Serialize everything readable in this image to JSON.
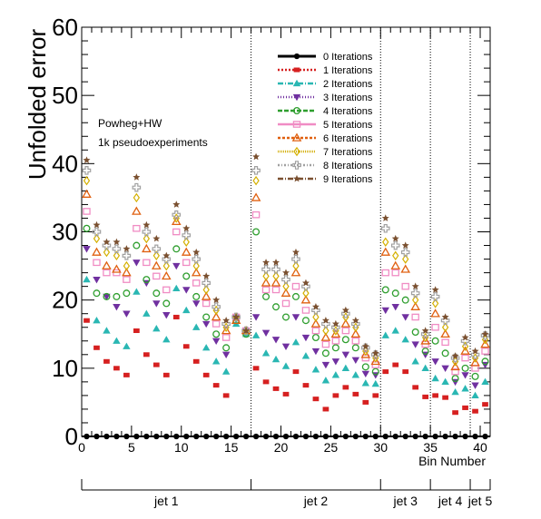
{
  "chart_data": {
    "type": "scatter",
    "ylabel": "Unfolded error",
    "xlabel": "Bin Number",
    "xlim": [
      0,
      41
    ],
    "ylim": [
      0,
      60
    ],
    "x_ticks": [
      0,
      5,
      10,
      15,
      20,
      25,
      30,
      35,
      40
    ],
    "y_ticks": [
      0,
      10,
      20,
      30,
      40,
      50,
      60
    ],
    "annotations": [
      "Powheg+HW",
      "1k pseudoexperiments"
    ],
    "legend_position": "top-center",
    "jet_boundaries": [
      17,
      30,
      35,
      39
    ],
    "jet_labels": [
      {
        "label": "jet 1",
        "from": 0,
        "to": 17
      },
      {
        "label": "jet 2",
        "from": 17,
        "to": 30
      },
      {
        "label": "jet 3",
        "from": 30,
        "to": 35
      },
      {
        "label": "jet 4",
        "from": 35,
        "to": 39
      },
      {
        "label": "jet 5",
        "from": 39,
        "to": 41
      }
    ],
    "x": [
      0.5,
      1.5,
      2.5,
      3.5,
      4.5,
      5.5,
      6.5,
      7.5,
      8.5,
      9.5,
      10.5,
      11.5,
      12.5,
      13.5,
      14.5,
      15.5,
      16.5,
      17.5,
      18.5,
      19.5,
      20.5,
      21.5,
      22.5,
      23.5,
      24.5,
      25.5,
      26.5,
      27.5,
      28.5,
      29.5,
      30.5,
      31.5,
      32.5,
      33.5,
      34.5,
      35.5,
      36.5,
      37.5,
      38.5,
      39.5,
      40.5
    ],
    "series": [
      {
        "name": "0 Iterations",
        "color": "#000000",
        "marker": "circle",
        "values": [
          0,
          0,
          0,
          0,
          0,
          0,
          0,
          0,
          0,
          0,
          0,
          0,
          0,
          0,
          0,
          0,
          0,
          0,
          0,
          0,
          0,
          0,
          0,
          0,
          0,
          0,
          0,
          0,
          0,
          0,
          0,
          0,
          0,
          0,
          0,
          0,
          0,
          0,
          0,
          0,
          0
        ]
      },
      {
        "name": "1 Iterations",
        "color": "#d62020",
        "marker": "square",
        "values": [
          17,
          13,
          11,
          10,
          9,
          15.5,
          12,
          10.5,
          9,
          17.5,
          13.2,
          11,
          9,
          7.5,
          6,
          17.5,
          15,
          10,
          8,
          7,
          6.2,
          9.5,
          7.5,
          5.5,
          4,
          6,
          7.2,
          6.2,
          5,
          6,
          9.5,
          10.5,
          9.5,
          7.2,
          5.8,
          6,
          5.7,
          3.5,
          4.2,
          3.7,
          4.7
        ]
      },
      {
        "name": "2 Iterations",
        "color": "#2ab7b3",
        "marker": "triangle-up",
        "values": [
          23,
          17,
          15.5,
          14,
          13.2,
          21.2,
          18,
          15.8,
          14.2,
          21.7,
          18.5,
          16,
          13,
          11,
          9.5,
          16.5,
          15,
          14.8,
          12.2,
          11.3,
          10.3,
          13.8,
          11.8,
          9.8,
          8.2,
          9,
          10,
          9,
          7.8,
          7.7,
          14.8,
          15.5,
          14.2,
          11,
          10,
          8.5,
          8,
          6.5,
          7,
          6,
          8
        ]
      },
      {
        "name": "3 Iterations",
        "color": "#7030a0",
        "marker": "triangle-down",
        "values": [
          27.5,
          23,
          20.5,
          19,
          18,
          25.5,
          22.5,
          19.5,
          17.8,
          25,
          21.5,
          19.5,
          16.5,
          14,
          12,
          17.5,
          15.5,
          17.5,
          15.2,
          14.2,
          13.2,
          17.5,
          14.5,
          12.5,
          10.5,
          11,
          12,
          11.2,
          9.2,
          9,
          18.5,
          19,
          17.5,
          13.5,
          12,
          11,
          10,
          8,
          9,
          7.5,
          10.5
        ]
      },
      {
        "name": "4 Iterations",
        "color": "#2e9e2e",
        "marker": "circle-open",
        "values": [
          30.5,
          21,
          20.5,
          20.5,
          21,
          28,
          23,
          21,
          19.5,
          27.5,
          23.5,
          20.5,
          17.5,
          15,
          13,
          17,
          15,
          30,
          20.5,
          19,
          17.5,
          20.5,
          17,
          14.5,
          12.2,
          13,
          14.2,
          13,
          10.2,
          9.5,
          21.5,
          21,
          20,
          15.3,
          12.5,
          14,
          12.2,
          8.5,
          10,
          8.8,
          11
        ]
      },
      {
        "name": "5 Iterations",
        "color": "#f08cc4",
        "marker": "square-open",
        "values": [
          33,
          25.5,
          24,
          24,
          23,
          30.5,
          25.5,
          23.5,
          21.5,
          30,
          25.5,
          22.5,
          19.5,
          16.5,
          14.5,
          17.5,
          15.5,
          32.5,
          21.5,
          21.5,
          19.5,
          22,
          18.5,
          15.5,
          13.5,
          14,
          15.5,
          14,
          11.5,
          10.5,
          24,
          24,
          22,
          17.5,
          13.5,
          16,
          13.8,
          9.5,
          11.5,
          10,
          12.5
        ]
      },
      {
        "name": "6 Iterations",
        "color": "#e06010",
        "marker": "triangle-up-open",
        "values": [
          35.5,
          27,
          25,
          24.5,
          24,
          33,
          27.5,
          25,
          23.5,
          31.5,
          27,
          24,
          20.5,
          17.5,
          15.5,
          17,
          15.5,
          35,
          22.5,
          22.5,
          21,
          24,
          20,
          16.5,
          14.5,
          15,
          16.5,
          15,
          12,
          11,
          27,
          25,
          24.5,
          19,
          14,
          18,
          15,
          10.2,
          12.5,
          10.8,
          13.5
        ]
      },
      {
        "name": "7 Iterations",
        "color": "#d4b000",
        "marker": "diamond-open",
        "values": [
          37.5,
          29,
          27,
          26.5,
          25,
          35,
          29,
          26.5,
          25,
          32,
          28.5,
          25,
          21.5,
          18.5,
          16,
          17.5,
          15.5,
          37.5,
          23.5,
          23.5,
          22,
          25,
          21,
          17.5,
          15.5,
          15.5,
          17.5,
          16,
          12.5,
          11.5,
          28.5,
          26.5,
          26,
          20,
          14.5,
          19.5,
          16,
          11,
          13.2,
          11.5,
          14.2
        ]
      },
      {
        "name": "8 Iterations",
        "color": "#a0a0a0",
        "marker": "cross-open",
        "values": [
          39,
          30,
          28,
          27.5,
          26.5,
          36.5,
          30,
          27.5,
          26,
          32.5,
          29.5,
          26,
          22.5,
          19,
          16.5,
          17.5,
          15.5,
          39,
          24.5,
          24.5,
          23,
          26,
          22,
          18.5,
          16.5,
          16,
          18,
          16.5,
          13,
          12,
          30.5,
          28,
          27,
          21,
          15,
          20.5,
          17,
          11.5,
          14,
          12,
          14.8
        ]
      },
      {
        "name": "9 Iterations",
        "color": "#7a5030",
        "marker": "star",
        "values": [
          40.5,
          31,
          28.5,
          28.5,
          27.5,
          38,
          31,
          29,
          26.5,
          34,
          30.5,
          27,
          23.5,
          20,
          17,
          17.5,
          15.5,
          41,
          25.5,
          25.5,
          24,
          27,
          22.5,
          19,
          17,
          16.5,
          18.5,
          17,
          13.2,
          12.2,
          32,
          29,
          28,
          22,
          15.5,
          21.5,
          17.5,
          11.8,
          14.5,
          12.5,
          15
        ]
      }
    ]
  }
}
